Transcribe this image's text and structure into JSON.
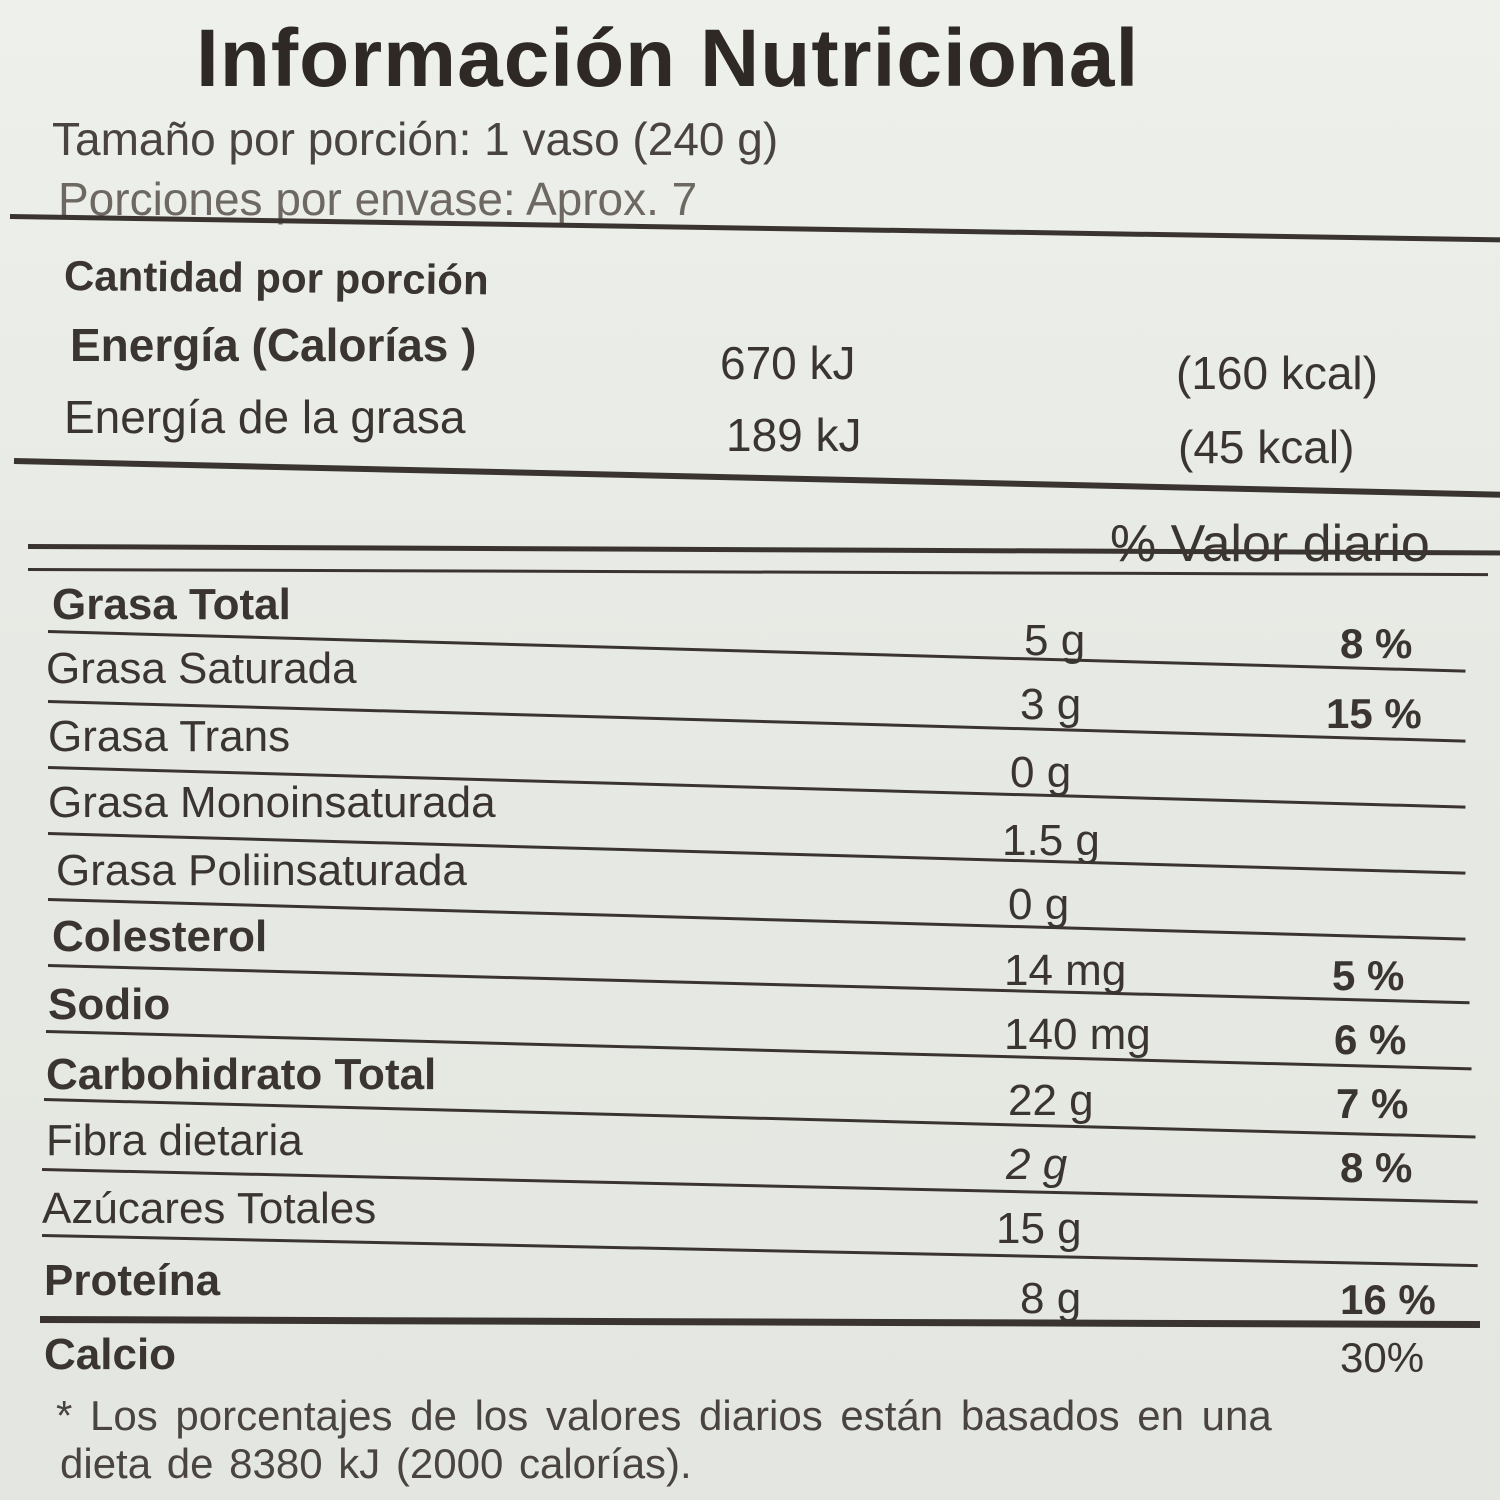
{
  "label": {
    "title": "Información Nutricional",
    "serving_size": "Tamaño por porción: 1 vaso (240 g)",
    "servings_per_container": "Porciones por envase: Aprox. 7",
    "amount_per_serving": "Cantidad por porción",
    "energy": {
      "name": "Energía  (Calorías )",
      "kj": "670 kJ",
      "kcal": "(160 kcal)"
    },
    "energy_fat": {
      "name": "Energía de la grasa",
      "kj": "189 kJ",
      "kcal": "(45 kcal)"
    },
    "dv_header": "% Valor diario",
    "nutrients": [
      {
        "name": "Grasa Total",
        "amount": "5 g",
        "dv": "8 %",
        "bold": true
      },
      {
        "name": "Grasa Saturada",
        "amount": "3 g",
        "dv": "15 %",
        "bold": false
      },
      {
        "name": "Grasa Trans",
        "amount": "0 g",
        "dv": "",
        "bold": false
      },
      {
        "name": "Grasa Monoinsaturada",
        "amount": "1.5 g",
        "dv": "",
        "bold": false
      },
      {
        "name": "Grasa Poliinsaturada",
        "amount": "0 g",
        "dv": "",
        "bold": false
      },
      {
        "name": "Colesterol",
        "amount": "14 mg",
        "dv": "5 %",
        "bold": true
      },
      {
        "name": "Sodio",
        "amount": "140 mg",
        "dv": "6 %",
        "bold": true
      },
      {
        "name": "Carbohidrato Total",
        "amount": "22 g",
        "dv": "7 %",
        "bold": true
      },
      {
        "name": "Fibra dietaria",
        "amount": "2 g",
        "dv": "8 %",
        "bold": false
      },
      {
        "name": "Azúcares Totales",
        "amount": "15 g",
        "dv": "",
        "bold": false
      },
      {
        "name": "Proteína",
        "amount": "8 g",
        "dv": "16 %",
        "bold": true
      }
    ],
    "calcium": {
      "name": "Calcio",
      "dv": "30%"
    },
    "footnote_line1": "* Los porcentajes de los valores diarios están basados en una",
    "footnote_line2": "dieta de 8380 kJ (2000 calorías)."
  }
}
